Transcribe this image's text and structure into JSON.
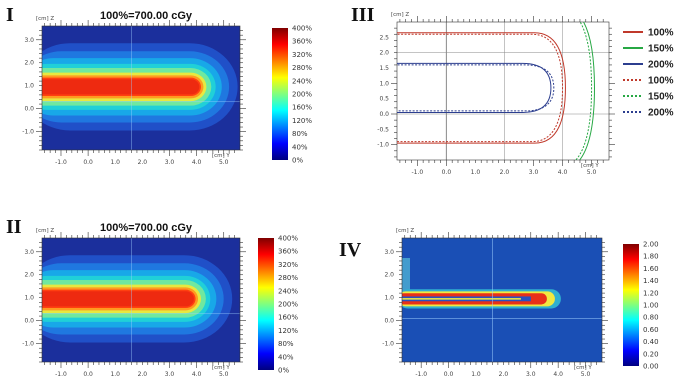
{
  "chart_data": [
    {
      "id": "I",
      "type": "heatmap",
      "panel_label": "I",
      "title": "100%=700.00 cGy",
      "x_axis": {
        "unit_label": "[cm] Y",
        "ticks": [
          "-1.0",
          "0.0",
          "1.0",
          "2.0",
          "3.0",
          "4.0",
          "5.0"
        ],
        "range": [
          -1.7,
          5.6
        ]
      },
      "y_axis": {
        "unit_label": "[cm] Z",
        "ticks": [
          "3.0",
          "2.0",
          "1.0",
          "0.0",
          "-1.0"
        ],
        "range": [
          -1.8,
          3.6
        ]
      },
      "colorbar": {
        "ticks": [
          "400%",
          "360%",
          "320%",
          "280%",
          "240%",
          "200%",
          "160%",
          "120%",
          "80%",
          "40%",
          "0%"
        ],
        "range": [
          0,
          400
        ]
      },
      "dose_region": {
        "center_z": 0.95,
        "x_start": -1.7,
        "x_end": 4.1,
        "peak_percent": 400
      }
    },
    {
      "id": "II",
      "type": "heatmap",
      "panel_label": "II",
      "title": "100%=700.00 cGy",
      "x_axis": {
        "unit_label": "[cm] Y",
        "ticks": [
          "-1.0",
          "0.0",
          "1.0",
          "2.0",
          "3.0",
          "4.0",
          "5.0"
        ],
        "range": [
          -1.7,
          5.6
        ]
      },
      "y_axis": {
        "unit_label": "[cm] Z",
        "ticks": [
          "3.0",
          "2.0",
          "1.0",
          "0.0",
          "-1.0"
        ],
        "range": [
          -1.8,
          3.6
        ]
      },
      "colorbar": {
        "ticks": [
          "400%",
          "360%",
          "320%",
          "280%",
          "240%",
          "200%",
          "160%",
          "120%",
          "80%",
          "40%",
          "0%"
        ],
        "range": [
          0,
          400
        ]
      },
      "dose_region": {
        "center_z": 0.95,
        "x_start": -1.7,
        "x_end": 3.9,
        "peak_percent": 400
      }
    },
    {
      "id": "III",
      "type": "line",
      "panel_label": "III",
      "x_axis": {
        "unit_label": "[cm] Y",
        "ticks": [
          "-1.0",
          "0.0",
          "1.0",
          "2.0",
          "3.0",
          "4.0",
          "5.0"
        ],
        "range": [
          -1.7,
          5.6
        ]
      },
      "y_axis": {
        "unit_label": "[cm] Z",
        "ticks": [
          "2.5",
          "2.0",
          "1.5",
          "1.0",
          "0.5",
          "0.0",
          "-0.5",
          "-1.0"
        ],
        "range": [
          -1.5,
          3.0
        ]
      },
      "legend_position": "right",
      "series": [
        {
          "name": "100%",
          "color": "#c0392b",
          "dash": false,
          "y_tip": 4.1,
          "z_half": 1.8,
          "z_center": 0.85
        },
        {
          "name": "150%",
          "color": "#27a844",
          "dash": false,
          "y_tip": 5.1,
          "z_half": 2.7,
          "z_center": 0.85
        },
        {
          "name": "200%",
          "color": "#2c3e8f",
          "dash": false,
          "y_tip": 3.6,
          "z_half": 0.8,
          "z_center": 0.85
        },
        {
          "name": "100%",
          "color": "#c0392b",
          "dash": true,
          "y_tip": 4.0,
          "z_half": 1.75,
          "z_center": 0.85
        },
        {
          "name": "150%",
          "color": "#27a844",
          "dash": true,
          "y_tip": 5.0,
          "z_half": 2.65,
          "z_center": 0.85
        },
        {
          "name": "200%",
          "color": "#2c3e8f",
          "dash": true,
          "y_tip": 3.7,
          "z_half": 0.75,
          "z_center": 0.85
        }
      ]
    },
    {
      "id": "IV",
      "type": "heatmap",
      "panel_label": "IV",
      "x_axis": {
        "unit_label": "[cm] Y",
        "ticks": [
          "-1.0",
          "0.0",
          "1.0",
          "2.0",
          "3.0",
          "4.0",
          "5.0"
        ],
        "range": [
          -1.7,
          5.6
        ]
      },
      "y_axis": {
        "unit_label": "[cm] Z",
        "ticks": [
          "3.0",
          "2.0",
          "1.0",
          "0.0",
          "-1.0"
        ],
        "range": [
          -1.8,
          3.6
        ]
      },
      "colorbar": {
        "ticks": [
          "2.00",
          "1.80",
          "1.60",
          "1.40",
          "1.20",
          "1.00",
          "0.80",
          "0.60",
          "0.40",
          "0.20",
          "0.00"
        ],
        "range": [
          0,
          2
        ]
      },
      "ratio_region": {
        "center_z": 0.95,
        "x_start": -1.7,
        "x_end": 4.1
      }
    }
  ],
  "colors": {
    "jet": [
      "#00007f",
      "#0000ff",
      "#007fff",
      "#00ffff",
      "#7fff7f",
      "#ffff00",
      "#ff7f00",
      "#ff0000",
      "#7f0000"
    ],
    "background_field": "#1f3fae",
    "ratio_field": "#1a4fb5"
  }
}
